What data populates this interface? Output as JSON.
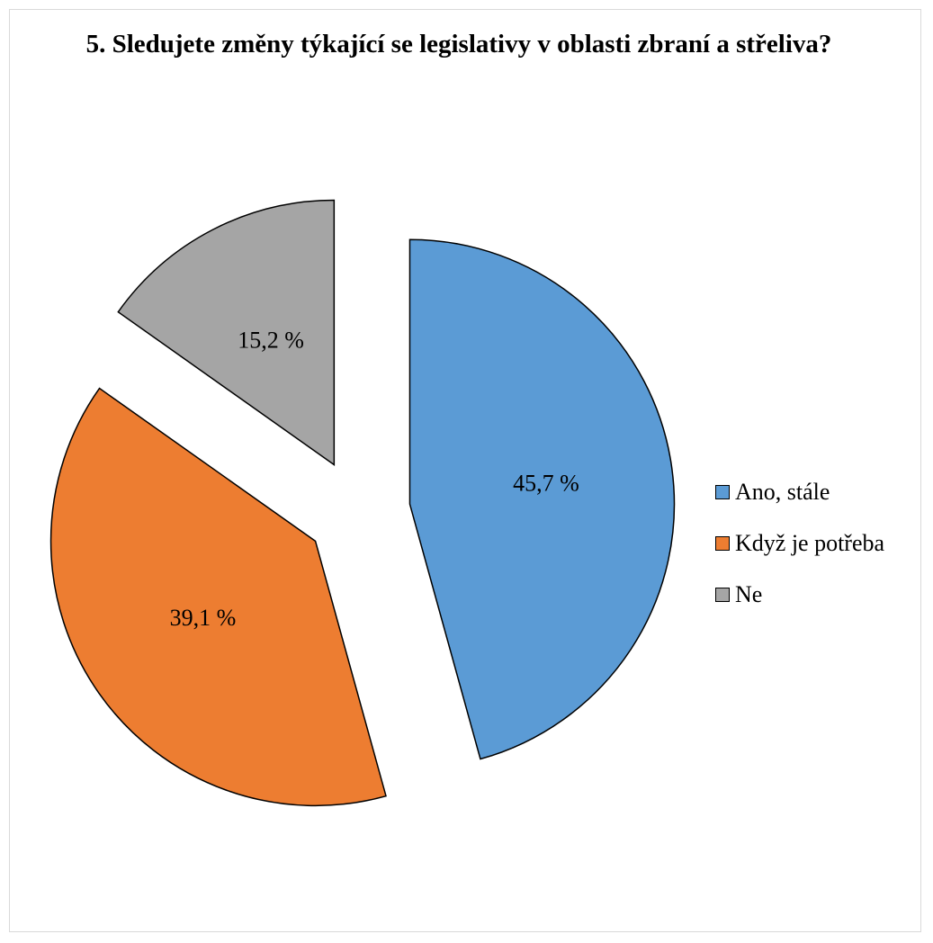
{
  "chart_data": {
    "type": "pie",
    "title": "5. Sledujete změny týkající se legislativy v oblasti zbraní a střeliva?",
    "categories": [
      "Ano, stále",
      "Když je potřeba",
      "Ne"
    ],
    "values": [
      45.7,
      39.1,
      15.2
    ],
    "data_labels": [
      "45,7 %",
      "39,1 %",
      "15,2 %"
    ],
    "colors": [
      "#5b9bd5",
      "#ed7d31",
      "#a5a5a5"
    ],
    "exploded": true,
    "legend_position": "right"
  }
}
